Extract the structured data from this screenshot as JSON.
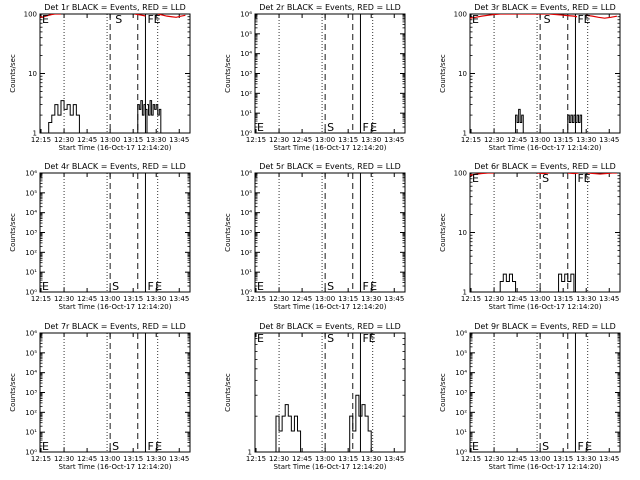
{
  "chart_data": [
    {
      "type": "line",
      "title": "Det 1r BLACK = Events, RED = LLD",
      "xlabel": "Start Time (16-Oct-17 12:14:20)",
      "ylabel": "Counts/sec",
      "xticks": [
        "12:15",
        "12:30",
        "12:45",
        "13:00",
        "13:15",
        "13:30",
        "13:45"
      ],
      "yscale": "log",
      "ylim": [
        1,
        100
      ],
      "yticks": [
        "1",
        "10",
        "100"
      ],
      "markers": [
        {
          "label": "E",
          "x": "12:15"
        },
        {
          "label": "S",
          "x": "13:02"
        },
        {
          "label": "F",
          "x": "13:23"
        },
        {
          "label": "E",
          "x": "13:27"
        }
      ],
      "series": [
        {
          "name": "Events",
          "segments": [
            {
              "x": [
                "12:18",
                "12:20",
                "12:22",
                "12:24",
                "12:26",
                "12:28",
                "12:30",
                "12:32",
                "12:34",
                "12:36",
                "12:38",
                "12:40"
              ],
              "y": [
                1,
                1.5,
                2,
                3,
                2,
                3.5,
                2.5,
                3,
                2,
                3,
                2,
                1
              ]
            },
            {
              "x": [
                "13:16",
                "13:18",
                "13:19",
                "13:20",
                "13:21",
                "13:22",
                "13:23",
                "13:24"
              ],
              "y": [
                1,
                3,
                2.5,
                3.5,
                2,
                3,
                2.5,
                1
              ]
            },
            {
              "x": [
                "13:24",
                "13:25",
                "13:26",
                "13:27",
                "13:28",
                "13:29",
                "13:30",
                "13:31",
                "13:32",
                "13:33"
              ],
              "y": [
                3,
                2,
                3.5,
                2,
                3,
                2.5,
                3,
                2,
                2.5,
                1
              ]
            }
          ]
        },
        {
          "name": "LLD",
          "segments": [
            {
              "x": [
                "12:14",
                "12:16",
                "12:18",
                "12:20",
                "12:22",
                "12:24",
                "12:26",
                "12:28"
              ],
              "y": [
                90,
                88,
                92,
                95,
                98,
                100,
                100,
                100
              ]
            },
            {
              "x": [
                "13:16",
                "13:18",
                "13:20",
                "13:22",
                "13:23"
              ],
              "y": [
                100,
                98,
                96,
                94,
                92
              ]
            },
            {
              "x": [
                "13:31",
                "13:34",
                "13:37",
                "13:40",
                "13:43",
                "13:46",
                "13:49"
              ],
              "y": [
                100,
                96,
                92,
                90,
                88,
                92,
                95
              ]
            }
          ]
        }
      ]
    },
    {
      "type": "line",
      "title": "Det 2r BLACK = Events, RED = LLD",
      "xlabel": "Start Time (16-Oct-17 12:14:20)",
      "ylabel": "Counts/sec",
      "xticks": [
        "12:15",
        "12:30",
        "12:45",
        "13:00",
        "13:15",
        "13:30",
        "13:45"
      ],
      "yscale": "log",
      "ylim": [
        1,
        1000000
      ],
      "yticks": [
        "10⁰",
        "10¹",
        "10²",
        "10³",
        "10⁴",
        "10⁵",
        "10⁶"
      ],
      "markers": [
        {
          "label": "E",
          "x": "12:15"
        },
        {
          "label": "S",
          "x": "13:00"
        },
        {
          "label": "F",
          "x": "13:23"
        },
        {
          "label": "E",
          "x": "13:28"
        }
      ],
      "series": []
    },
    {
      "type": "line",
      "title": "Det 3r BLACK = Events, RED = LLD",
      "xlabel": "Start Time (16-Oct-17 12:14:20)",
      "ylabel": "Counts/sec",
      "xticks": [
        "12:15",
        "12:30",
        "12:45",
        "13:00",
        "13:15",
        "13:30",
        "13:45"
      ],
      "yscale": "log",
      "ylim": [
        1,
        100
      ],
      "yticks": [
        "1",
        "10",
        "100"
      ],
      "markers": [
        {
          "label": "E",
          "x": "12:15"
        },
        {
          "label": "S",
          "x": "13:01"
        },
        {
          "label": "F",
          "x": "13:23"
        },
        {
          "label": "E",
          "x": "13:27"
        }
      ],
      "series": [
        {
          "name": "Events",
          "segments": [
            {
              "x": [
                "12:43",
                "12:44",
                "12:45",
                "12:46",
                "12:47",
                "12:48",
                "12:49"
              ],
              "y": [
                1,
                2,
                1.5,
                2.5,
                1.5,
                2,
                1
              ]
            },
            {
              "x": [
                "13:17",
                "13:18",
                "13:19",
                "13:20",
                "13:21",
                "13:22",
                "13:23",
                "13:24",
                "13:25",
                "13:26",
                "13:27"
              ],
              "y": [
                1,
                2,
                1.5,
                2,
                1.5,
                2,
                1.5,
                2,
                1.5,
                2,
                1
              ]
            }
          ]
        },
        {
          "name": "LLD",
          "segments": [
            {
              "x": [
                "12:14",
                "12:18",
                "12:22",
                "12:26",
                "12:30",
                "12:34",
                "12:38",
                "12:42",
                "12:46",
                "12:50",
                "12:54",
                "12:58",
                "13:02",
                "13:06",
                "13:10",
                "13:14",
                "13:18",
                "13:22",
                "13:24"
              ],
              "y": [
                85,
                88,
                92,
                95,
                98,
                100,
                100,
                100,
                100,
                100,
                100,
                100,
                100,
                100,
                98,
                96,
                94,
                92,
                90
              ]
            },
            {
              "x": [
                "13:30",
                "13:34",
                "13:38",
                "13:42",
                "13:46",
                "13:50"
              ],
              "y": [
                95,
                92,
                88,
                85,
                88,
                92
              ]
            }
          ]
        }
      ]
    },
    {
      "type": "line",
      "title": "Det 4r BLACK = Events, RED = LLD",
      "xlabel": "Start Time (16-Oct-17 12:14:20)",
      "ylabel": "Counts/sec",
      "xticks": [
        "12:15",
        "12:30",
        "12:45",
        "13:00",
        "13:15",
        "13:30",
        "13:45"
      ],
      "yscale": "log",
      "ylim": [
        1,
        1000000
      ],
      "yticks": [
        "10⁰",
        "10¹",
        "10²",
        "10³",
        "10⁴",
        "10⁵",
        "10⁶"
      ],
      "markers": [
        {
          "label": "E",
          "x": "12:15"
        },
        {
          "label": "S",
          "x": "13:00"
        },
        {
          "label": "F",
          "x": "13:23"
        },
        {
          "label": "E",
          "x": "13:28"
        }
      ],
      "series": []
    },
    {
      "type": "line",
      "title": "Det 5r BLACK = Events, RED = LLD",
      "xlabel": "Start Time (16-Oct-17 12:14:20)",
      "ylabel": "Counts/sec",
      "xticks": [
        "12:15",
        "12:30",
        "12:45",
        "13:00",
        "13:15",
        "13:30",
        "13:45"
      ],
      "yscale": "log",
      "ylim": [
        1,
        1000000
      ],
      "yticks": [
        "10⁰",
        "10¹",
        "10²",
        "10³",
        "10⁴",
        "10⁵",
        "10⁶"
      ],
      "markers": [
        {
          "label": "E",
          "x": "12:15"
        },
        {
          "label": "S",
          "x": "13:00"
        },
        {
          "label": "F",
          "x": "13:23"
        },
        {
          "label": "E",
          "x": "13:28"
        }
      ],
      "series": []
    },
    {
      "type": "line",
      "title": "Det 6r BLACK = Events, RED = LLD",
      "xlabel": "Start Time (16-Oct-17 12:14:20)",
      "ylabel": "Counts/sec",
      "xticks": [
        "12:15",
        "12:30",
        "12:45",
        "13:00",
        "13:15",
        "13:30",
        "13:45"
      ],
      "yscale": "log",
      "ylim": [
        1,
        100
      ],
      "yticks": [
        "1",
        "10",
        "100"
      ],
      "markers": [
        {
          "label": "E",
          "x": "12:15"
        },
        {
          "label": "S",
          "x": "13:00"
        },
        {
          "label": "F",
          "x": "13:23"
        },
        {
          "label": "E",
          "x": "13:27"
        }
      ],
      "series": [
        {
          "name": "Events",
          "segments": [
            {
              "x": [
                "12:32",
                "12:34",
                "12:36",
                "12:38",
                "12:40",
                "12:42",
                "12:44"
              ],
              "y": [
                1,
                1.5,
                2,
                1.5,
                2,
                1.5,
                1
              ]
            },
            {
              "x": [
                "13:10",
                "13:12",
                "13:14",
                "13:16",
                "13:18",
                "13:20",
                "13:22"
              ],
              "y": [
                1,
                2,
                1.5,
                2,
                1.5,
                2,
                1
              ]
            }
          ]
        },
        {
          "name": "LLD",
          "segments": [
            {
              "x": [
                "12:14",
                "12:18",
                "12:22",
                "12:26",
                "12:30"
              ],
              "y": [
                92,
                95,
                98,
                100,
                100
              ]
            },
            {
              "x": [
                "12:58",
                "13:02",
                "13:06"
              ],
              "y": [
                100,
                98,
                100
              ]
            },
            {
              "x": [
                "13:18",
                "13:22",
                "13:25"
              ],
              "y": [
                100,
                98,
                100
              ]
            },
            {
              "x": [
                "13:31",
                "13:35",
                "13:39",
                "13:43",
                "13:47",
                "13:50"
              ],
              "y": [
                100,
                98,
                96,
                98,
                100,
                100
              ]
            }
          ]
        }
      ]
    },
    {
      "type": "line",
      "title": "Det 7r BLACK = Events, RED = LLD",
      "xlabel": "Start Time (16-Oct-17 12:14:20)",
      "ylabel": "Counts/sec",
      "xticks": [
        "12:15",
        "12:30",
        "12:45",
        "13:00",
        "13:15",
        "13:30",
        "13:45"
      ],
      "yscale": "log",
      "ylim": [
        1,
        1000000
      ],
      "yticks": [
        "10⁰",
        "10¹",
        "10²",
        "10³",
        "10⁴",
        "10⁵",
        "10⁶"
      ],
      "markers": [
        {
          "label": "E",
          "x": "12:15"
        },
        {
          "label": "S",
          "x": "13:00"
        },
        {
          "label": "F",
          "x": "13:23"
        },
        {
          "label": "E",
          "x": "13:28"
        }
      ],
      "series": []
    },
    {
      "type": "line",
      "title": "Det 8r BLACK = Events, RED = LLD",
      "xlabel": "Start Time (16-Oct-17 12:14:20)",
      "ylabel": "Counts/sec",
      "xticks": [
        "12:15",
        "12:30",
        "12:45",
        "13:00",
        "13:15",
        "13:30",
        "13:45"
      ],
      "yscale": "log",
      "ylim": [
        1,
        10
      ],
      "yticks": [
        "1"
      ],
      "markers": [
        {
          "label": "E",
          "x": "12:15"
        },
        {
          "label": "S",
          "x": "13:00"
        },
        {
          "label": "F",
          "x": "13:23"
        },
        {
          "label": "E",
          "x": "13:27"
        }
      ],
      "series": [
        {
          "name": "Events",
          "segments": [
            {
              "x": [
                "12:26",
                "12:28",
                "12:30",
                "12:32",
                "12:34",
                "12:36",
                "12:38",
                "12:40",
                "12:42",
                "12:44"
              ],
              "y": [
                1,
                2,
                1.5,
                2,
                2.5,
                2,
                1.5,
                2,
                1.5,
                1
              ]
            },
            {
              "x": [
                "13:14",
                "13:16",
                "13:18",
                "13:20",
                "13:22",
                "13:24",
                "13:26",
                "13:28",
                "13:30"
              ],
              "y": [
                1,
                2,
                1.5,
                3,
                2,
                2.5,
                2,
                1.5,
                1
              ]
            }
          ]
        }
      ]
    },
    {
      "type": "line",
      "title": "Det 9r BLACK = Events, RED = LLD",
      "xlabel": "Start Time (16-Oct-17 12:14:20)",
      "ylabel": "Counts/sec",
      "xticks": [
        "12:15",
        "12:30",
        "12:45",
        "13:00",
        "13:15",
        "13:30",
        "13:45"
      ],
      "yscale": "log",
      "ylim": [
        1,
        1000000
      ],
      "yticks": [
        "10⁰",
        "10¹",
        "10²",
        "10³",
        "10⁴",
        "10⁵",
        "10⁶"
      ],
      "markers": [
        {
          "label": "E",
          "x": "12:15"
        },
        {
          "label": "S",
          "x": "13:00"
        },
        {
          "label": "F",
          "x": "13:23"
        },
        {
          "label": "E",
          "x": "13:28"
        }
      ],
      "series": []
    }
  ]
}
